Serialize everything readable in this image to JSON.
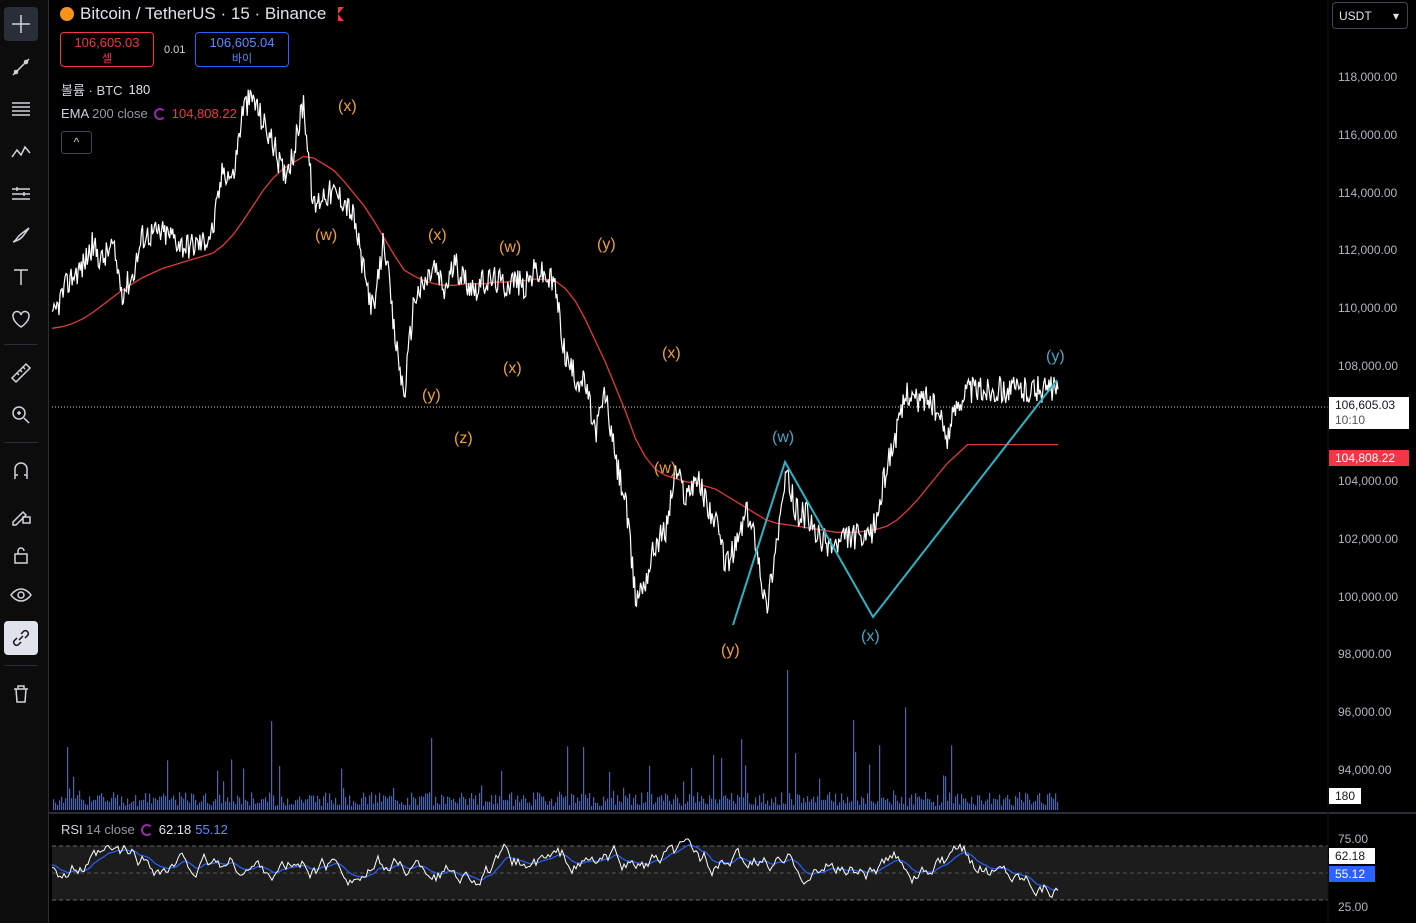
{
  "symbol": {
    "name": "Bitcoin / TetherUS · 15 · Binance"
  },
  "quote": {
    "sell_price": "106,605.03",
    "sell_label": "셀",
    "spread": "0.01",
    "buy_price": "106,605.04",
    "buy_label": "바이"
  },
  "volume_legend": {
    "label": "볼륨 · BTC",
    "value": "180"
  },
  "ema_legend": {
    "name": "EMA",
    "params": "200 close",
    "value": "104,808.22"
  },
  "rsi_legend": {
    "name": "RSI",
    "params": "14 close",
    "value": "62.18",
    "signal": "55.12"
  },
  "currency_selector": {
    "value": "USDT",
    "caret": "▾"
  },
  "collapse_button": {
    "label": "^"
  },
  "price_axis": {
    "ticks": [
      "118,000.00",
      "116,000.00",
      "114,000.00",
      "112,000.00",
      "110,000.00",
      "108,000.00",
      "104,000.00",
      "102,000.00",
      "100,000.00",
      "98,000.00",
      "96,000.00",
      "94,000.00"
    ]
  },
  "current_price_tag": {
    "price": "106,605.03",
    "countdown": "10:10"
  },
  "ema_tag": "104,808.22",
  "volume_tag": "180",
  "rsi_axis": {
    "ticks": [
      "75.00",
      "25.00"
    ],
    "value_tag": "62.18",
    "signal_tag": "55.12"
  },
  "wave_labels": {
    "orange": [
      "(x)",
      "(w)",
      "(x)",
      "(w)",
      "(y)",
      "(x)",
      "(y)",
      "(z)",
      "(x)",
      "(w)",
      "(y)"
    ],
    "cyan": [
      "(w)",
      "(x)",
      "(y)"
    ]
  },
  "colors": {
    "background": "#000000",
    "ema": "#e03a3a",
    "wave_orange": "#f0a030",
    "wave_cyan": "#3fa7c9",
    "rsi_line": "#ffffff",
    "rsi_signal": "#2962ff",
    "volume": "#4a64b0",
    "sell": "#f23645",
    "buy": "#2962ff"
  },
  "toolbar": [
    "crosshair-icon",
    "trendline-icon",
    "fib-icon",
    "pattern-icon",
    "forecast-icon",
    "brush-icon",
    "text-icon",
    "heart-icon",
    "ruler-icon",
    "zoom-icon",
    "magnet-icon",
    "lock-draw-icon",
    "lock-icon",
    "eye-icon",
    "link-icon",
    "trash-icon"
  ],
  "chart_data": {
    "type": "line",
    "title": "Bitcoin / TetherUS · 15 · Binance",
    "xlabel": "",
    "ylabel": "",
    "ylim": [
      92800,
      119300
    ],
    "x": [
      0,
      10,
      20,
      30,
      40,
      50,
      60,
      70,
      80,
      90,
      100,
      110,
      120,
      130,
      140,
      150,
      160,
      170,
      180,
      190,
      200,
      210,
      220,
      230,
      240,
      250,
      260,
      270,
      280,
      290,
      300,
      310,
      320,
      330,
      340,
      350,
      360,
      370,
      380,
      390,
      400,
      410,
      420,
      430,
      440,
      450,
      460,
      470,
      480,
      490,
      500,
      510,
      520,
      530,
      540,
      550,
      560,
      570,
      580,
      590,
      600,
      610,
      620,
      630,
      640,
      650,
      660,
      670,
      680,
      690,
      700,
      710,
      720,
      730,
      740,
      750,
      760,
      770,
      780,
      790,
      800,
      810,
      820,
      830,
      840,
      850,
      860,
      870,
      880,
      890,
      900,
      910,
      920,
      930,
      940,
      950,
      960,
      970,
      980,
      990,
      1000
    ],
    "series": [
      {
        "name": "Bitcoin / TetherUS",
        "values": [
          108800,
          109700,
          110300,
          110600,
          111300,
          110800,
          111300,
          109800,
          110300,
          111600,
          111700,
          111700,
          111600,
          111300,
          111300,
          111400,
          111800,
          113800,
          113500,
          115800,
          116100,
          115300,
          114600,
          113600,
          114300,
          116000,
          112500,
          113000,
          113000,
          112800,
          112200,
          110400,
          109100,
          111600,
          108500,
          106400,
          109600,
          110000,
          110600,
          109800,
          110700,
          110200,
          109900,
          110100,
          110200,
          110000,
          110200,
          109900,
          110500,
          110300,
          110000,
          107700,
          107000,
          106800,
          105200,
          106500,
          104300,
          103000,
          99800,
          100400,
          101600,
          102000,
          104000,
          103100,
          103800,
          103000,
          102200,
          100900,
          101500,
          102600,
          101700,
          99400,
          101600,
          103800,
          102600,
          102500,
          101800,
          101600,
          101500,
          101800,
          101800,
          101600,
          102400,
          104200,
          105200,
          106600,
          106200,
          106400,
          105800,
          105100,
          106200,
          106600,
          106600,
          106605,
          106605,
          106605,
          106605,
          106605,
          106605,
          106605,
          106605
        ]
      },
      {
        "name": "EMA 200 close",
        "values": [
          108600,
          108650,
          108750,
          108900,
          109100,
          109350,
          109600,
          109850,
          110050,
          110250,
          110400,
          110550,
          110650,
          110750,
          110850,
          110950,
          111050,
          111300,
          111650,
          112100,
          112600,
          113100,
          113500,
          113800,
          114000,
          114200,
          114150,
          113950,
          113750,
          113400,
          113000,
          112600,
          112100,
          111550,
          111000,
          110500,
          110300,
          110150,
          110050,
          110000,
          110000,
          110050,
          110050,
          110050,
          110100,
          110100,
          110150,
          110150,
          110200,
          110200,
          110150,
          109900,
          109500,
          108900,
          108200,
          107500,
          106700,
          105900,
          105000,
          104400,
          104000,
          103800,
          103700,
          103600,
          103550,
          103450,
          103350,
          103150,
          102950,
          102750,
          102550,
          102350,
          102250,
          102200,
          102150,
          102100,
          102050,
          102000,
          101950,
          101950,
          101950,
          102000,
          102050,
          102150,
          102350,
          102650,
          103000,
          103400,
          103800,
          104200,
          104500,
          104808,
          104808,
          104808,
          104808,
          104808,
          104808,
          104808,
          104808,
          104808,
          104808
        ]
      }
    ]
  }
}
